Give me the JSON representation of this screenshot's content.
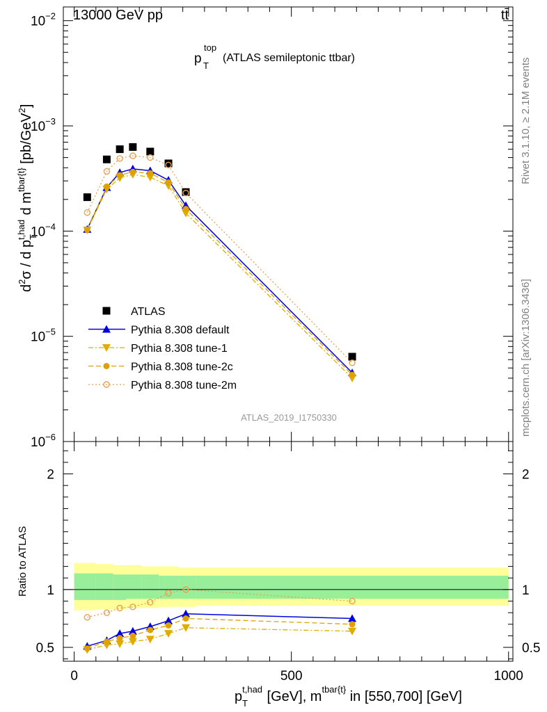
{
  "header": {
    "left": "13000 GeV pp",
    "right": "tt̄"
  },
  "side_labels": {
    "rivet": "Rivet 3.1.10, ≥ 2.1M events",
    "mcplots": "mcplots.cern.ch [arXiv:1306.3436]"
  },
  "chart_data": [
    {
      "type": "line",
      "panel": "main",
      "title": "(ATLAS semileptonic ttbar)",
      "title_var": "p",
      "title_sup": "top",
      "title_sub": "T",
      "ylabel": "d²σ / d p_T^{t,had} d m^{tbar{t}} [pb/GeV²]",
      "yscale": "log",
      "ylim": [
        1e-06,
        0.0135
      ],
      "xlim": [
        -25,
        1010
      ],
      "analysis_id": "ATLAS_2019_I1750330",
      "y_ticks": [
        {
          "mant": "10",
          "exp": "−6",
          "value": 1e-06
        },
        {
          "mant": "10",
          "exp": "−5",
          "value": 1e-05
        },
        {
          "mant": "10",
          "exp": "−4",
          "value": 0.0001
        },
        {
          "mant": "10",
          "exp": "−3",
          "value": 0.001
        },
        {
          "mant": "10",
          "exp": "−2",
          "value": 0.01
        }
      ],
      "series": [
        {
          "name": "ATLAS",
          "color": "#000000",
          "marker": "square",
          "line": "none",
          "x": [
            30,
            75,
            105,
            135,
            175,
            217,
            257,
            640
          ],
          "y": [
            0.00021,
            0.00048,
            0.0006,
            0.00063,
            0.00057,
            0.00044,
            0.000235,
            6.4e-06
          ]
        },
        {
          "name": "Pythia 8.308 default",
          "color": "#0000dd",
          "marker": "triangle-up",
          "line": "solid",
          "x": [
            30,
            75,
            105,
            135,
            175,
            217,
            257,
            640
          ],
          "y": [
            0.000104,
            0.00026,
            0.00036,
            0.00039,
            0.000375,
            0.000305,
            0.000175,
            4.5e-06
          ]
        },
        {
          "name": "Pythia 8.308 tune-1",
          "color": "#e0ac00",
          "marker": "triangle-down",
          "line": "dashdot",
          "x": [
            30,
            75,
            105,
            135,
            175,
            217,
            257,
            640
          ],
          "y": [
            0.000102,
            0.00025,
            0.00032,
            0.000345,
            0.000325,
            0.00027,
            0.000148,
            4e-06
          ]
        },
        {
          "name": "Pythia 8.308 tune-2c",
          "color": "#e0a000",
          "marker": "circle",
          "line": "dashed",
          "x": [
            30,
            75,
            105,
            135,
            175,
            217,
            257,
            640
          ],
          "y": [
            0.000103,
            0.000265,
            0.00034,
            0.000365,
            0.000355,
            0.00029,
            0.000162,
            4.3e-06
          ]
        },
        {
          "name": "Pythia 8.308 tune-2m",
          "color": "#e8a050",
          "marker": "circle-open",
          "line": "dotted",
          "x": [
            30,
            75,
            105,
            135,
            175,
            217,
            257,
            640
          ],
          "y": [
            0.00015,
            0.00037,
            0.00049,
            0.00052,
            0.0005,
            0.000425,
            0.00023,
            5.6e-06
          ]
        }
      ]
    },
    {
      "type": "line",
      "panel": "ratio",
      "ylabel": "Ratio to ATLAS",
      "xlabel": "p_T^{t,had} [GeV], m^{tbar{t}} in [550,700] [GeV]",
      "xlim": [
        -25,
        1010
      ],
      "ylim": [
        0.38,
        2.28
      ],
      "x_ticks": [
        {
          "label": "0",
          "value": 0
        },
        {
          "label": "500",
          "value": 500
        },
        {
          "label": "1000",
          "value": 1000
        }
      ],
      "y_ticks": [
        {
          "label": "0.5",
          "value": 0.5
        },
        {
          "label": "1",
          "value": 1
        },
        {
          "label": "2",
          "value": 2
        }
      ],
      "reference_line": 1,
      "bands": [
        {
          "name": "yellow",
          "color": "#ffff99",
          "edges": [
            0,
            50,
            90,
            120,
            155,
            195,
            240,
            280,
            1000
          ],
          "lo": [
            0.82,
            0.83,
            0.83,
            0.84,
            0.84,
            0.85,
            0.85,
            0.86
          ],
          "hi": [
            1.23,
            1.22,
            1.21,
            1.21,
            1.2,
            1.2,
            1.19,
            1.19
          ]
        },
        {
          "name": "green",
          "color": "#99ee99",
          "edges": [
            0,
            50,
            90,
            120,
            155,
            195,
            240,
            280,
            1000
          ],
          "lo": [
            0.91,
            0.91,
            0.91,
            0.92,
            0.92,
            0.92,
            0.92,
            0.92
          ],
          "hi": [
            1.14,
            1.14,
            1.13,
            1.13,
            1.13,
            1.12,
            1.12,
            1.12
          ]
        }
      ],
      "series": [
        {
          "name": "Pythia 8.308 default",
          "color": "#0000dd",
          "marker": "triangle-up",
          "line": "solid",
          "x": [
            30,
            75,
            105,
            135,
            175,
            217,
            257,
            640
          ],
          "y": [
            0.51,
            0.56,
            0.62,
            0.64,
            0.68,
            0.73,
            0.79,
            0.75
          ]
        },
        {
          "name": "Pythia 8.308 tune-1",
          "color": "#e0ac00",
          "marker": "triangle-down",
          "line": "dashdot",
          "x": [
            30,
            75,
            105,
            135,
            175,
            217,
            257,
            640
          ],
          "y": [
            0.48,
            0.52,
            0.53,
            0.55,
            0.57,
            0.62,
            0.67,
            0.64
          ]
        },
        {
          "name": "Pythia 8.308 tune-2c",
          "color": "#e0a000",
          "marker": "circle",
          "line": "dashed",
          "x": [
            30,
            75,
            105,
            135,
            175,
            217,
            257,
            640
          ],
          "y": [
            0.49,
            0.55,
            0.58,
            0.6,
            0.65,
            0.69,
            0.75,
            0.7
          ]
        },
        {
          "name": "Pythia 8.308 tune-2m",
          "color": "#e8a050",
          "marker": "circle-open",
          "line": "dotted",
          "x": [
            30,
            75,
            105,
            135,
            175,
            217,
            257,
            640
          ],
          "y": [
            0.76,
            0.8,
            0.84,
            0.85,
            0.89,
            0.97,
            1.0,
            0.9
          ]
        }
      ]
    }
  ]
}
